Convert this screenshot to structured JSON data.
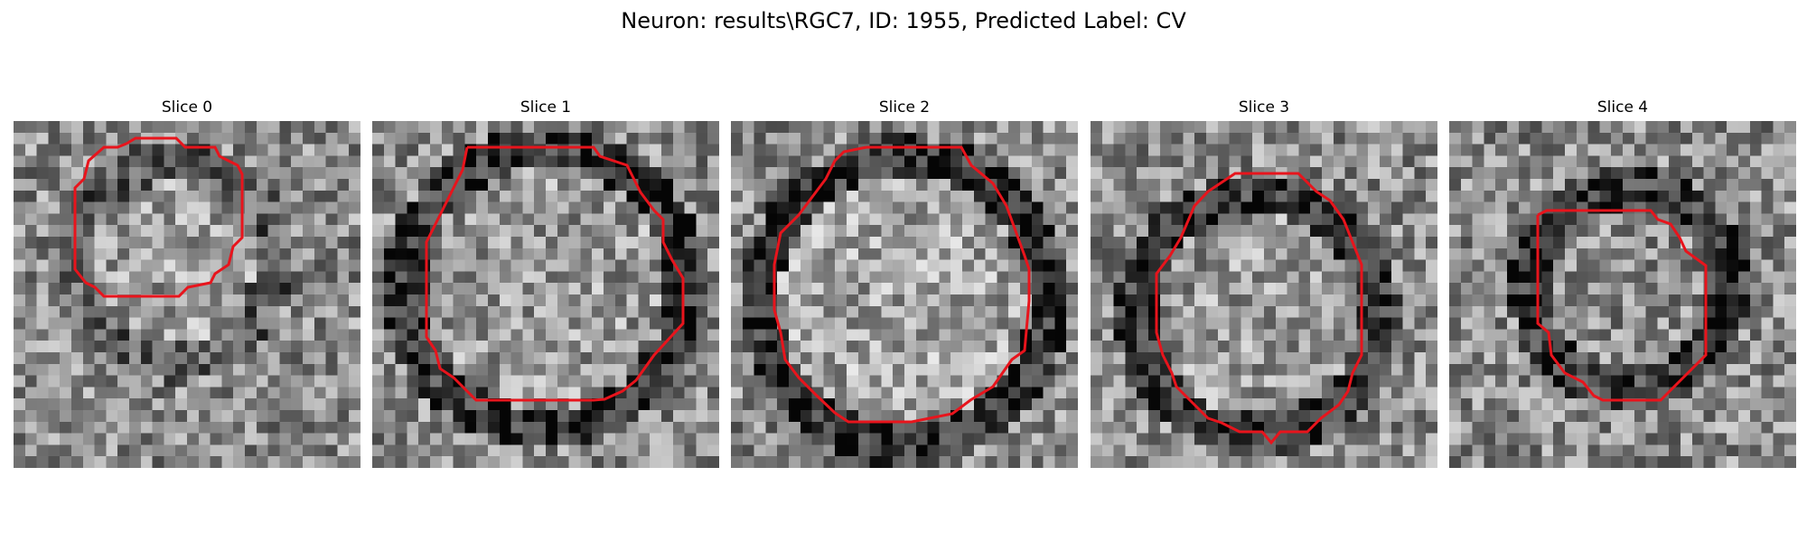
{
  "figure": {
    "title": "Neuron: results\\RGC7, ID: 1955, Predicted Label: CV",
    "contour_color": "#e8141c"
  },
  "slices": [
    {
      "label": "Slice 0"
    },
    {
      "label": "Slice 1"
    },
    {
      "label": "Slice 2"
    },
    {
      "label": "Slice 3"
    },
    {
      "label": "Slice 4"
    }
  ]
}
